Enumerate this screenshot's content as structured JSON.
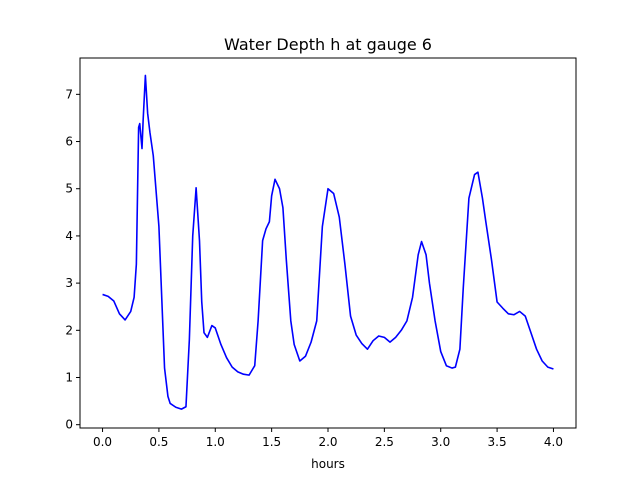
{
  "chart_data": {
    "type": "line",
    "title": "Water Depth h at gauge 6",
    "xlabel": "hours",
    "ylabel": "",
    "xlim": [
      -0.2,
      4.2
    ],
    "ylim": [
      -0.07,
      7.77
    ],
    "x_ticks": [
      0.0,
      0.5,
      1.0,
      1.5,
      2.0,
      2.5,
      3.0,
      3.5,
      4.0
    ],
    "x_tick_labels": [
      "0.0",
      "0.5",
      "1.0",
      "1.5",
      "2.0",
      "2.5",
      "3.0",
      "3.5",
      "4.0"
    ],
    "y_ticks": [
      0,
      1,
      2,
      3,
      4,
      5,
      6,
      7
    ],
    "y_tick_labels": [
      "0",
      "1",
      "2",
      "3",
      "4",
      "5",
      "6",
      "7"
    ],
    "grid": false,
    "series": [
      {
        "color": "#0000ff",
        "x": [
          0.0,
          0.05,
          0.1,
          0.15,
          0.2,
          0.25,
          0.28,
          0.3,
          0.32,
          0.33,
          0.35,
          0.36,
          0.38,
          0.4,
          0.42,
          0.45,
          0.5,
          0.52,
          0.55,
          0.58,
          0.6,
          0.65,
          0.7,
          0.74,
          0.77,
          0.8,
          0.83,
          0.86,
          0.88,
          0.9,
          0.93,
          0.97,
          1.0,
          1.05,
          1.1,
          1.15,
          1.2,
          1.25,
          1.3,
          1.35,
          1.38,
          1.42,
          1.45,
          1.48,
          1.5,
          1.53,
          1.57,
          1.6,
          1.63,
          1.67,
          1.7,
          1.75,
          1.8,
          1.85,
          1.9,
          1.95,
          2.0,
          2.05,
          2.1,
          2.15,
          2.2,
          2.25,
          2.3,
          2.35,
          2.4,
          2.45,
          2.5,
          2.55,
          2.6,
          2.65,
          2.7,
          2.75,
          2.8,
          2.83,
          2.87,
          2.9,
          2.95,
          3.0,
          3.05,
          3.1,
          3.13,
          3.17,
          3.2,
          3.25,
          3.3,
          3.33,
          3.37,
          3.4,
          3.45,
          3.5,
          3.55,
          3.6,
          3.65,
          3.7,
          3.75,
          3.8,
          3.85,
          3.9,
          3.95,
          4.0
        ],
        "y": [
          2.76,
          2.72,
          2.62,
          2.35,
          2.22,
          2.4,
          2.7,
          3.4,
          6.3,
          6.38,
          5.85,
          6.45,
          7.4,
          6.6,
          6.2,
          5.7,
          4.2,
          3.0,
          1.2,
          0.6,
          0.45,
          0.37,
          0.33,
          0.38,
          1.8,
          4.0,
          5.02,
          3.9,
          2.6,
          1.95,
          1.85,
          2.1,
          2.05,
          1.7,
          1.42,
          1.22,
          1.12,
          1.07,
          1.05,
          1.25,
          2.2,
          3.9,
          4.15,
          4.3,
          4.85,
          5.2,
          5.0,
          4.6,
          3.5,
          2.2,
          1.7,
          1.35,
          1.45,
          1.75,
          2.2,
          4.2,
          5.0,
          4.9,
          4.4,
          3.4,
          2.3,
          1.9,
          1.72,
          1.6,
          1.78,
          1.88,
          1.85,
          1.75,
          1.85,
          2.0,
          2.2,
          2.7,
          3.6,
          3.88,
          3.6,
          3.0,
          2.2,
          1.55,
          1.25,
          1.2,
          1.22,
          1.6,
          2.9,
          4.8,
          5.3,
          5.35,
          4.8,
          4.3,
          3.5,
          2.6,
          2.47,
          2.35,
          2.33,
          2.4,
          2.3,
          1.95,
          1.6,
          1.35,
          1.22,
          1.18
        ]
      }
    ]
  }
}
